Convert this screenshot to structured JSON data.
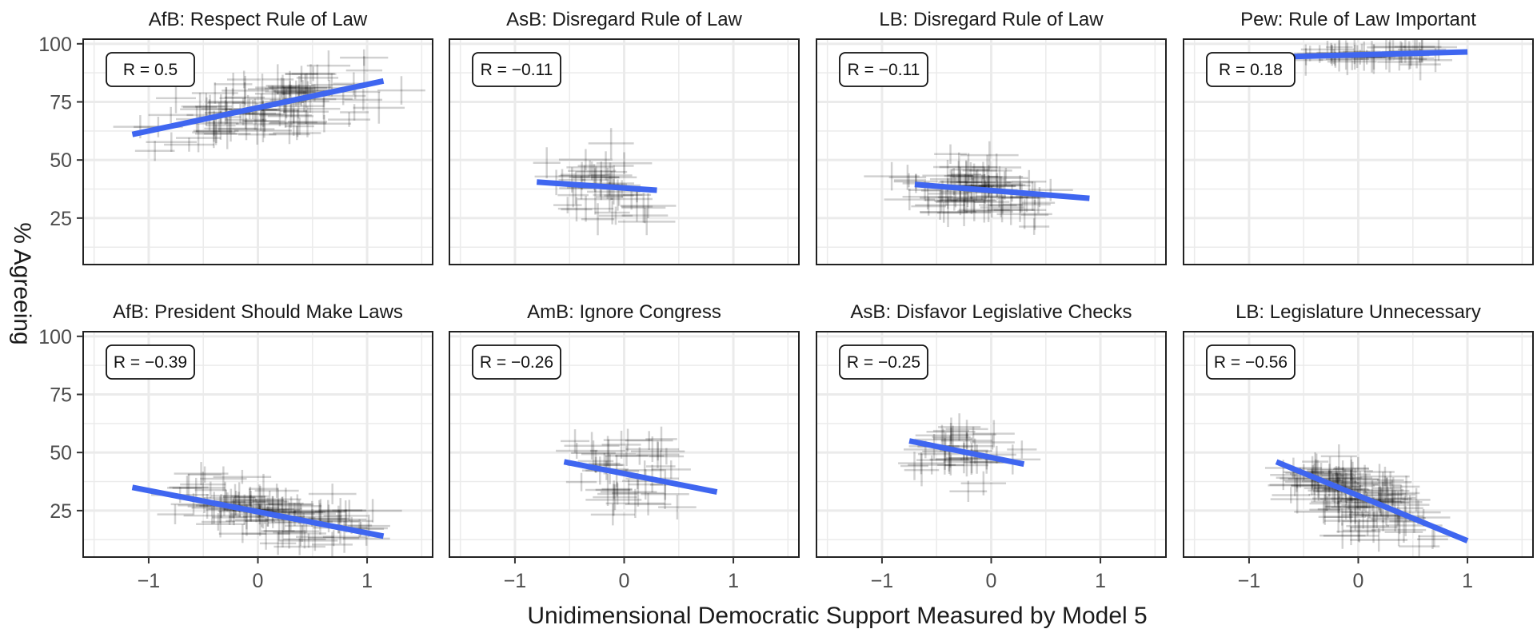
{
  "figure": {
    "xlabel": "Unidimensional Democratic Support Measured by Model 5",
    "ylabel": "% Agreeing",
    "xlim": [
      -1.6,
      1.6
    ],
    "ylim": [
      5,
      102
    ],
    "x_ticks": [
      "−1",
      "0",
      "1"
    ],
    "y_ticks": [
      "100",
      "75",
      "50",
      "25"
    ],
    "grid": true,
    "colors": {
      "fit_line": "#3f66f0",
      "points": "#000000",
      "panel_border": "#222222",
      "grid": "#ebebeb"
    }
  },
  "chart_data": [
    {
      "type": "scatter",
      "title": "AfB: Respect Rule of Law",
      "r_label": "R = 0.5",
      "fit": {
        "x": [
          -1.15,
          1.15
        ],
        "y": [
          61,
          84
        ]
      },
      "cloud": {
        "x_center": 0.1,
        "x_spread": 0.55,
        "y_center": 73,
        "y_spread": 8,
        "count": 110,
        "slope": 10
      }
    },
    {
      "type": "scatter",
      "title": "AsB: Disregard Rule of Law",
      "r_label": "R = −0.11",
      "fit": {
        "x": [
          -0.8,
          0.3
        ],
        "y": [
          40.5,
          37
        ]
      },
      "cloud": {
        "x_center": -0.2,
        "x_spread": 0.3,
        "y_center": 38,
        "y_spread": 10,
        "count": 45,
        "slope": -3
      }
    },
    {
      "type": "scatter",
      "title": "LB: Disregard Rule of Law",
      "r_label": "R = −0.11",
      "fit": {
        "x": [
          -0.7,
          0.9
        ],
        "y": [
          39.5,
          33.5
        ]
      },
      "cloud": {
        "x_center": -0.1,
        "x_spread": 0.4,
        "y_center": 37,
        "y_spread": 8,
        "count": 90,
        "slope": -3
      }
    },
    {
      "type": "scatter",
      "title": "Pew: Rule of Law Important",
      "r_label": "R = 0.18",
      "fit": {
        "x": [
          -0.6,
          1.0
        ],
        "y": [
          94.5,
          96.5
        ]
      },
      "cloud": {
        "x_center": 0.1,
        "x_spread": 0.4,
        "y_center": 95,
        "y_spread": 2.5,
        "count": 45,
        "slope": 1
      }
    },
    {
      "type": "scatter",
      "title": "AfB: President Should Make Laws",
      "r_label": "R = −0.39",
      "fit": {
        "x": [
          -1.15,
          1.15
        ],
        "y": [
          35,
          14
        ]
      },
      "cloud": {
        "x_center": 0.1,
        "x_spread": 0.55,
        "y_center": 24,
        "y_spread": 7,
        "count": 110,
        "slope": -8
      }
    },
    {
      "type": "scatter",
      "title": "AmB: Ignore Congress",
      "r_label": "R = −0.26",
      "fit": {
        "x": [
          -0.55,
          0.85
        ],
        "y": [
          46,
          33
        ]
      },
      "cloud": {
        "x_center": 0.0,
        "x_spread": 0.3,
        "y_center": 42,
        "y_spread": 9,
        "count": 45,
        "slope": -6
      }
    },
    {
      "type": "scatter",
      "title": "AsB: Disfavor Legislative Checks",
      "r_label": "R = −0.25",
      "fit": {
        "x": [
          -0.75,
          0.3
        ],
        "y": [
          55,
          45
        ]
      },
      "cloud": {
        "x_center": -0.2,
        "x_spread": 0.3,
        "y_center": 50,
        "y_spread": 9,
        "count": 40,
        "slope": -6
      }
    },
    {
      "type": "scatter",
      "title": "LB: Legislature Unnecessary",
      "r_label": "R = −0.56",
      "fit": {
        "x": [
          -0.75,
          1.0
        ],
        "y": [
          46,
          12
        ]
      },
      "cloud": {
        "x_center": 0.0,
        "x_spread": 0.35,
        "y_center": 30,
        "y_spread": 9,
        "count": 130,
        "slope": -17
      }
    }
  ]
}
